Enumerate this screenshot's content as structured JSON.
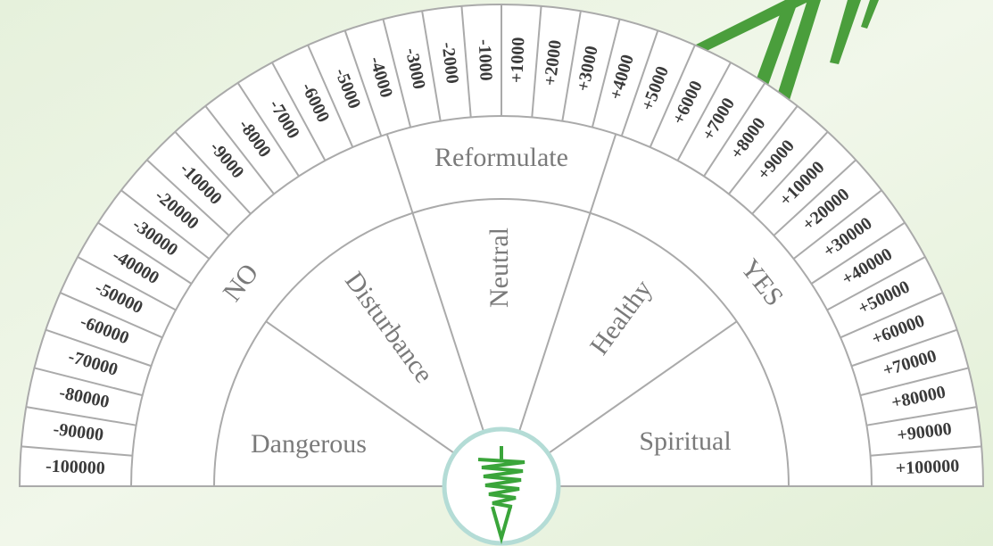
{
  "scale": [
    "-100000",
    "-90000",
    "-80000",
    "-70000",
    "-60000",
    "-50000",
    "-40000",
    "-30000",
    "-20000",
    "-10000",
    "-9000",
    "-8000",
    "-7000",
    "-6000",
    "-5000",
    "-4000",
    "-3000",
    "-2000",
    "-1000",
    "+1000",
    "+2000",
    "+3000",
    "+4000",
    "+5000",
    "+6000",
    "+7000",
    "+8000",
    "+9000",
    "+10000",
    "+20000",
    "+30000",
    "+40000",
    "+50000",
    "+60000",
    "+70000",
    "+80000",
    "+90000",
    "+100000"
  ],
  "zones": {
    "no": "NO",
    "reformulate": "Reformulate",
    "yes": "YES"
  },
  "answers": {
    "dangerous": "Dangerous",
    "disturbance": "Disturbance",
    "neutral": "Neutral",
    "healthy": "Healthy",
    "spiritual": "Spiritual"
  }
}
